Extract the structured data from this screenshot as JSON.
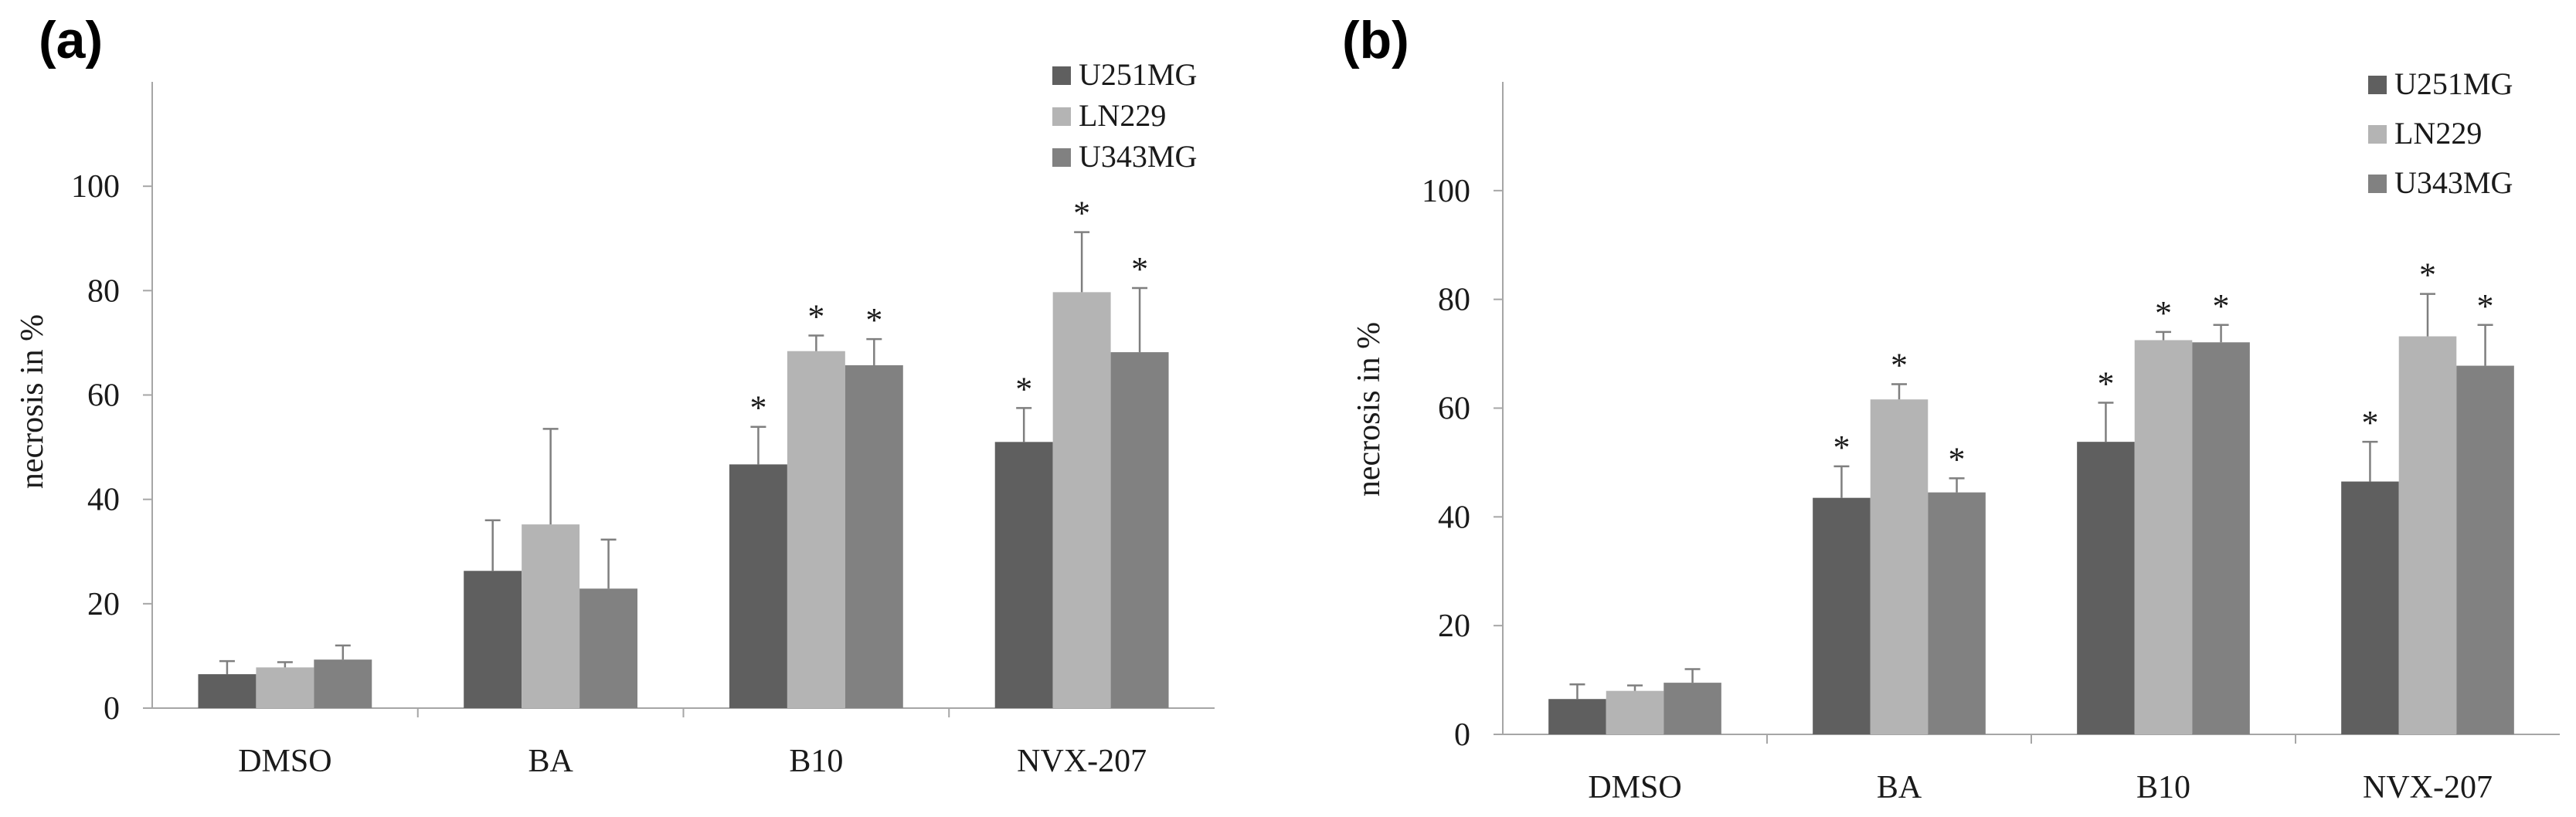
{
  "chart_data": [
    {
      "panel": "(a)",
      "type": "bar",
      "ylabel": "necrosis in %",
      "ylim": [
        0,
        120
      ],
      "yticks": [
        0,
        20,
        40,
        60,
        80,
        100
      ],
      "categories": [
        "DMSO",
        "BA",
        "B10",
        "NVX-207"
      ],
      "legend_position": "top-right",
      "series": [
        {
          "name": "U251MG",
          "color": "#5f5f5f",
          "values": [
            6.5,
            26.3,
            46.7,
            51
          ],
          "errors": [
            2.5,
            9.7,
            7.2,
            6.5
          ],
          "significant": [
            false,
            false,
            true,
            true
          ]
        },
        {
          "name": "LN229",
          "color": "#b4b4b4",
          "values": [
            7.8,
            35.2,
            68.4,
            79.7
          ],
          "errors": [
            1,
            18.3,
            3,
            11.5
          ],
          "significant": [
            false,
            false,
            true,
            true
          ]
        },
        {
          "name": "U343MG",
          "color": "#818181",
          "values": [
            9.3,
            22.9,
            65.7,
            68.2
          ],
          "errors": [
            2.7,
            9.4,
            5,
            12.3
          ],
          "significant": [
            false,
            false,
            true,
            true
          ]
        }
      ],
      "significance_marker": "*"
    },
    {
      "panel": "(b)",
      "type": "bar",
      "ylabel": "necrosis in %",
      "ylim": [
        0,
        120
      ],
      "yticks": [
        0,
        20,
        40,
        60,
        80,
        100
      ],
      "categories": [
        "DMSO",
        "BA",
        "B10",
        "NVX-207"
      ],
      "legend_position": "top-right",
      "series": [
        {
          "name": "U251MG",
          "color": "#5f5f5f",
          "values": [
            6.5,
            43.5,
            53.8,
            46.5
          ],
          "errors": [
            2.7,
            5.8,
            7.2,
            7.3
          ],
          "significant": [
            false,
            true,
            true,
            true
          ]
        },
        {
          "name": "LN229",
          "color": "#b4b4b4",
          "values": [
            8,
            61.6,
            72.5,
            73.2
          ],
          "errors": [
            1,
            2.8,
            1.5,
            7.8
          ],
          "significant": [
            false,
            true,
            true,
            true
          ]
        },
        {
          "name": "U343MG",
          "color": "#818181",
          "values": [
            9.5,
            44.5,
            72.1,
            67.8
          ],
          "errors": [
            2.5,
            2.6,
            3.2,
            7.5
          ],
          "significant": [
            false,
            true,
            true,
            true
          ]
        }
      ],
      "significance_marker": "*"
    }
  ]
}
